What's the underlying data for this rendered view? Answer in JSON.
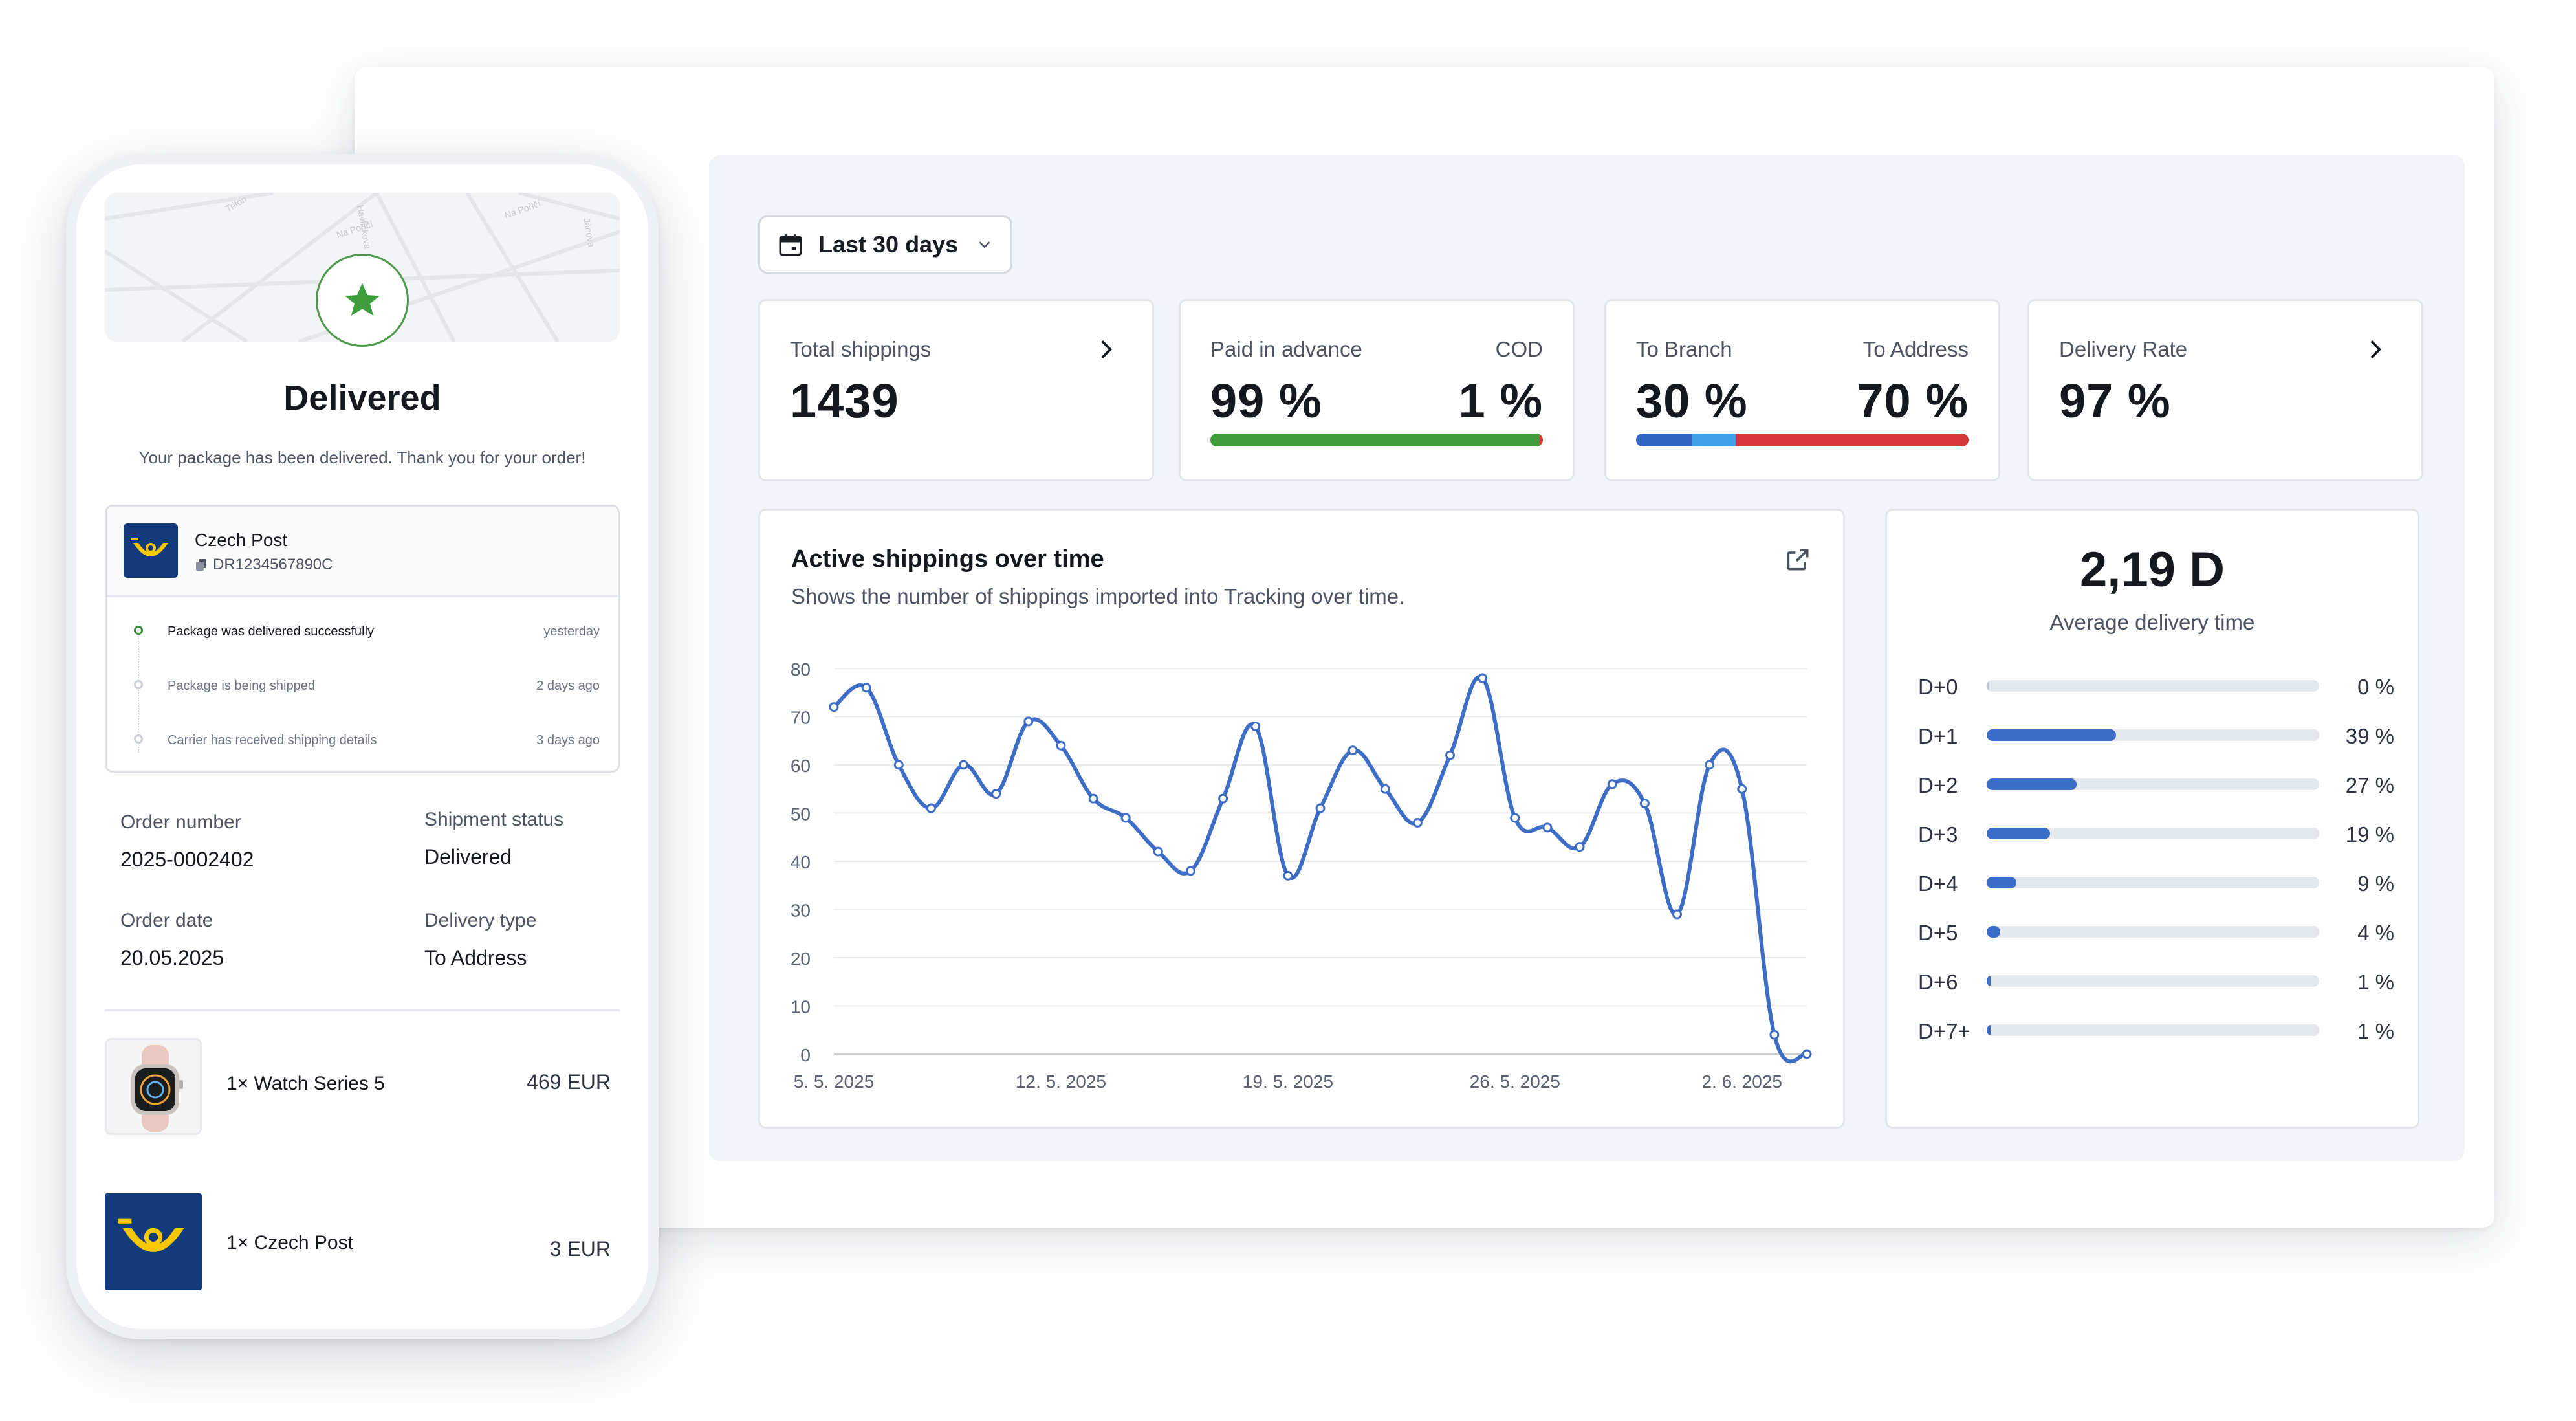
{
  "dashboard": {
    "date_filter": {
      "label": "Last 30 days",
      "icon": "calendar-icon"
    },
    "kpis": {
      "total_shippings": {
        "label": "Total shippings",
        "value": "1439"
      },
      "payment": {
        "left_label": "Paid in advance",
        "left_value": "99 %",
        "right_label": "COD",
        "right_value": "1 %",
        "bar": {
          "paid_in_advance": 99,
          "cod": 1,
          "colors": [
            "#3e9e3e",
            "#d73737"
          ]
        }
      },
      "delivery_split": {
        "left_label": "To Branch",
        "left_value": "30 %",
        "right_label": "To Address",
        "right_value": "70 %",
        "bar": {
          "to_branch_segments": [
            17,
            13
          ],
          "to_address": 70,
          "colors": [
            "#3366c4",
            "#3fa0e8",
            "#d73737"
          ]
        }
      },
      "delivery_rate": {
        "label": "Delivery Rate",
        "value": "97 %"
      }
    },
    "active_chart": {
      "title": "Active shippings over time",
      "subtitle": "Shows the number of shippings imported into Tracking over time."
    },
    "delivery_time": {
      "value": "2,19 D",
      "caption": "Average delivery time",
      "rows": [
        {
          "label": "D+0",
          "percent": 0,
          "text": "0 %"
        },
        {
          "label": "D+1",
          "percent": 39,
          "text": "39 %"
        },
        {
          "label": "D+2",
          "percent": 27,
          "text": "27 %"
        },
        {
          "label": "D+3",
          "percent": 19,
          "text": "19 %"
        },
        {
          "label": "D+4",
          "percent": 9,
          "text": "9 %"
        },
        {
          "label": "D+5",
          "percent": 4,
          "text": "4 %"
        },
        {
          "label": "D+6",
          "percent": 1,
          "text": "1 %"
        },
        {
          "label": "D+7+",
          "percent": 1,
          "text": "1 %"
        }
      ]
    }
  },
  "chart_data": {
    "type": "line",
    "title": "Active shippings over time",
    "x_tick_labels": [
      "5. 5. 2025",
      "12. 5. 2025",
      "19. 5. 2025",
      "26. 5. 2025",
      "2. 6. 2025"
    ],
    "x_tick_indices": [
      0,
      7,
      14,
      21,
      28
    ],
    "y_ticks": [
      0,
      10,
      20,
      30,
      40,
      50,
      60,
      70,
      80
    ],
    "ylim": [
      0,
      80
    ],
    "grid": true,
    "series": [
      {
        "values": [
          72,
          76,
          60,
          51,
          60,
          54,
          69,
          64,
          53,
          49,
          42,
          38,
          53,
          68,
          37,
          51,
          63,
          55,
          48,
          62,
          78,
          49,
          47,
          43,
          56,
          52,
          29,
          60,
          55,
          4,
          0
        ],
        "color": "#3d6dc4"
      }
    ]
  },
  "phone": {
    "status_title": "Delivered",
    "status_message": "Your package has been delivered. Thank you for your order!",
    "carrier": {
      "name": "Czech Post",
      "tracking_number": "DR1234567890C"
    },
    "timeline": [
      {
        "text": "Package was delivered successfully",
        "time": "yesterday"
      },
      {
        "text": "Package is being shipped",
        "time": "2 days ago"
      },
      {
        "text": "Carrier has received shipping details",
        "time": "3 days ago"
      }
    ],
    "order": {
      "order_number_label": "Order number",
      "order_number": "2025-0002402",
      "shipment_status_label": "Shipment status",
      "shipment_status": "Delivered",
      "order_date_label": "Order date",
      "order_date": "20.05.2025",
      "delivery_type_label": "Delivery type",
      "delivery_type": "To Address"
    },
    "items": [
      {
        "name": "1× Watch Series 5",
        "price": "469 EUR"
      },
      {
        "name": "1× Czech Post",
        "price": "3 EUR"
      }
    ]
  }
}
